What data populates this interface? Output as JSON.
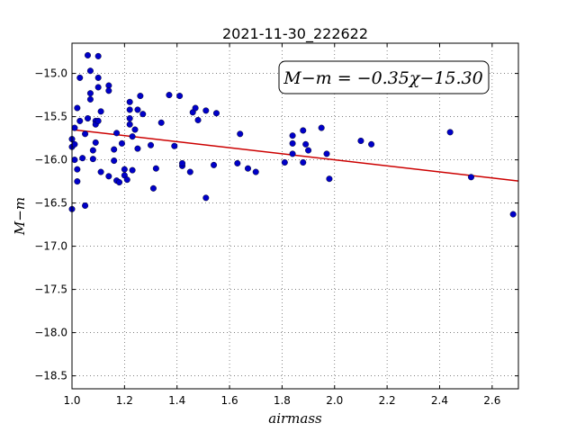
{
  "chart_data": {
    "type": "scatter",
    "title": "2021-11-30_222622",
    "xlabel": "airmass",
    "ylabel": "M−m",
    "xlim": [
      1.0,
      2.7
    ],
    "ylim": [
      -18.65,
      -14.65
    ],
    "x_ticks": [
      1.0,
      1.2,
      1.4,
      1.6,
      1.8,
      2.0,
      2.2,
      2.4,
      2.6
    ],
    "x_tick_labels": [
      "1.0",
      "1.2",
      "1.4",
      "1.6",
      "1.8",
      "2.0",
      "2.2",
      "2.4",
      "2.6"
    ],
    "y_ticks": [
      -15.0,
      -15.5,
      -16.0,
      -16.5,
      -17.0,
      -17.5,
      -18.0,
      -18.5
    ],
    "y_tick_labels": [
      "−15.0",
      "−15.5",
      "−16.0",
      "−16.5",
      "−17.0",
      "−17.5",
      "−18.0",
      "−18.5"
    ],
    "grid": true,
    "annotation": "M−m = −0.35χ−15.30",
    "fit_line": {
      "slope": -0.35,
      "intercept": -15.3,
      "color": "#cc0000"
    },
    "point_color": "#0000c8",
    "points": [
      [
        1.0,
        -16.57
      ],
      [
        1.0,
        -15.76
      ],
      [
        1.0,
        -15.85
      ],
      [
        1.01,
        -15.63
      ],
      [
        1.01,
        -16.0
      ],
      [
        1.01,
        -15.82
      ],
      [
        1.02,
        -15.4
      ],
      [
        1.02,
        -16.25
      ],
      [
        1.02,
        -16.11
      ],
      [
        1.03,
        -15.55
      ],
      [
        1.03,
        -15.05
      ],
      [
        1.04,
        -15.98
      ],
      [
        1.05,
        -15.7
      ],
      [
        1.05,
        -16.53
      ],
      [
        1.06,
        -15.52
      ],
      [
        1.06,
        -14.79
      ],
      [
        1.07,
        -14.97
      ],
      [
        1.07,
        -15.3
      ],
      [
        1.07,
        -15.23
      ],
      [
        1.08,
        -15.89
      ],
      [
        1.08,
        -15.99
      ],
      [
        1.09,
        -15.55
      ],
      [
        1.09,
        -15.8
      ],
      [
        1.09,
        -15.59
      ],
      [
        1.1,
        -15.16
      ],
      [
        1.1,
        -15.05
      ],
      [
        1.1,
        -15.55
      ],
      [
        1.1,
        -14.8
      ],
      [
        1.11,
        -15.44
      ],
      [
        1.11,
        -16.14
      ],
      [
        1.14,
        -15.14
      ],
      [
        1.14,
        -15.2
      ],
      [
        1.14,
        -16.19
      ],
      [
        1.16,
        -16.01
      ],
      [
        1.16,
        -15.88
      ],
      [
        1.17,
        -15.69
      ],
      [
        1.17,
        -16.24
      ],
      [
        1.18,
        -16.26
      ],
      [
        1.19,
        -15.81
      ],
      [
        1.2,
        -16.11
      ],
      [
        1.2,
        -16.18
      ],
      [
        1.21,
        -16.23
      ],
      [
        1.22,
        -15.59
      ],
      [
        1.22,
        -15.52
      ],
      [
        1.22,
        -15.33
      ],
      [
        1.22,
        -15.42
      ],
      [
        1.23,
        -16.12
      ],
      [
        1.23,
        -15.73
      ],
      [
        1.24,
        -15.65
      ],
      [
        1.25,
        -15.42
      ],
      [
        1.25,
        -15.87
      ],
      [
        1.26,
        -15.26
      ],
      [
        1.27,
        -15.47
      ],
      [
        1.3,
        -15.83
      ],
      [
        1.31,
        -16.33
      ],
      [
        1.32,
        -16.1
      ],
      [
        1.34,
        -15.57
      ],
      [
        1.37,
        -15.25
      ],
      [
        1.39,
        -15.84
      ],
      [
        1.41,
        -15.26
      ],
      [
        1.42,
        -16.07
      ],
      [
        1.42,
        -16.04
      ],
      [
        1.45,
        -16.14
      ],
      [
        1.46,
        -15.45
      ],
      [
        1.47,
        -15.4
      ],
      [
        1.48,
        -15.54
      ],
      [
        1.51,
        -16.44
      ],
      [
        1.51,
        -15.43
      ],
      [
        1.54,
        -16.06
      ],
      [
        1.55,
        -15.46
      ],
      [
        1.63,
        -16.04
      ],
      [
        1.64,
        -15.7
      ],
      [
        1.67,
        -16.1
      ],
      [
        1.7,
        -16.14
      ],
      [
        1.81,
        -16.03
      ],
      [
        1.84,
        -15.81
      ],
      [
        1.84,
        -15.72
      ],
      [
        1.84,
        -15.93
      ],
      [
        1.88,
        -15.66
      ],
      [
        1.88,
        -16.03
      ],
      [
        1.89,
        -15.82
      ],
      [
        1.9,
        -15.89
      ],
      [
        1.95,
        -15.63
      ],
      [
        1.97,
        -15.93
      ],
      [
        1.98,
        -16.22
      ],
      [
        2.1,
        -15.78
      ],
      [
        2.14,
        -15.82
      ],
      [
        2.44,
        -15.68
      ],
      [
        2.52,
        -16.2
      ],
      [
        2.68,
        -16.63
      ]
    ]
  }
}
